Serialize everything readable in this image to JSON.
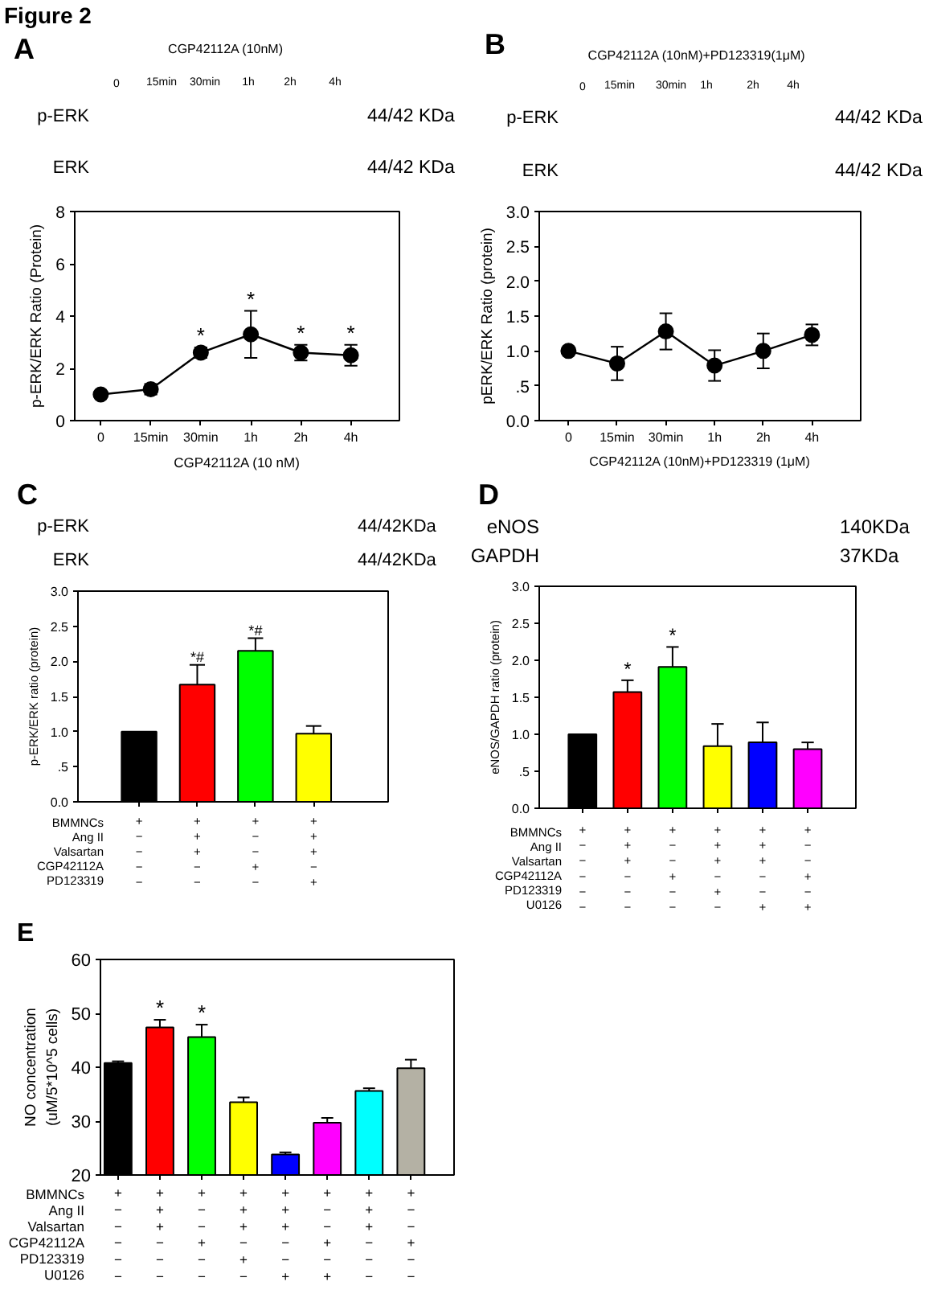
{
  "chart_data": [
    {
      "type": "line",
      "title": "A",
      "categories": [
        "0",
        "15min",
        "30min",
        "1h",
        "2h",
        "4h"
      ],
      "values": [
        1.0,
        1.2,
        2.6,
        3.3,
        2.6,
        2.5
      ],
      "errors": [
        null,
        0.2,
        0.2,
        0.9,
        0.3,
        0.4
      ],
      "color": "#000000",
      "marker": "circle",
      "xlabel": "CGP42112A (10 nM)",
      "ylabel": "p-ERK/ERK Ratio (Protein)",
      "ylim": [
        0,
        8
      ],
      "yticks": [
        0,
        2,
        4,
        6,
        8
      ],
      "annotations": [
        "Figure 2",
        "CGP42112A (10nM)",
        "0",
        "15min",
        "30min",
        "1h",
        "2h",
        "4h",
        "p-ERK",
        "44/42 KDa",
        "ERK",
        "44/42 KDa",
        {
          "text": "*",
          "x": "30min",
          "y": 2.8
        },
        {
          "text": "*",
          "x": "1h",
          "y": 4.2
        },
        {
          "text": "*",
          "x": "2h",
          "y": 2.9
        },
        {
          "text": "*",
          "x": "4h",
          "y": 2.9
        }
      ]
    },
    {
      "type": "line",
      "title": "B",
      "categories": [
        "0",
        "15min",
        "30min",
        "1h",
        "2h",
        "4h"
      ],
      "values": [
        1.0,
        0.82,
        1.28,
        0.79,
        1.0,
        1.23
      ],
      "errors": [
        null,
        0.24,
        0.26,
        0.22,
        0.25,
        0.15
      ],
      "color": "#000000",
      "marker": "circle",
      "xlabel": "CGP42112A (10nM)+PD123319 (1μM)",
      "ylabel": "pERK/ERK Ratio (protein)",
      "ylim": [
        0,
        3
      ],
      "yticks": [
        {
          "value": 0,
          "label": "0.0"
        },
        {
          "value": 0.5,
          "label": ".5"
        },
        {
          "value": 1,
          "label": "1.0"
        },
        {
          "value": 1.5,
          "label": "1.5"
        },
        {
          "value": 2,
          "label": "2.0"
        },
        {
          "value": 2.5,
          "label": "2.5"
        },
        {
          "value": 3,
          "label": "3.0"
        }
      ],
      "annotations": [
        "CGP42112A (10nM)+PD123319(1μM)",
        "0",
        "15min",
        "30min",
        "1h",
        "2h",
        "4h",
        "p-ERK",
        "44/42 KDa",
        "ERK",
        "44/42 KDa"
      ]
    },
    {
      "type": "bar",
      "title": "C",
      "categories": [
        "+\n−\n−\n−\n−",
        "+\n+\n+\n−\n−",
        "+\n−\n−\n+\n−",
        "+\n+\n+\n−\n+"
      ],
      "values": [
        1.0,
        1.67,
        2.15,
        0.97
      ],
      "errors": [
        null,
        0.28,
        0.18,
        0.11
      ],
      "colors": [
        "#000000",
        "#ff0000",
        "#00ff00",
        "#ffff00"
      ],
      "ylabel": "p-ERK/ERK ratio (protein)",
      "ylim": [
        0,
        3
      ],
      "yticks": [
        {
          "value": 0,
          "label": "0.0"
        },
        {
          "value": 0.5,
          "label": ".5"
        },
        {
          "value": 1,
          "label": "1.0"
        },
        {
          "value": 1.5,
          "label": "1.5"
        },
        {
          "value": 2,
          "label": "2.0"
        },
        {
          "value": 2.5,
          "label": "2.5"
        },
        {
          "value": 3,
          "label": "3.0"
        }
      ],
      "annotations": [
        "p-ERK",
        "44/42KDa",
        "ERK",
        "44/42KDa",
        "BMMNCs",
        "Ang II",
        "Valsartan",
        "CGP42112A",
        "PD123319",
        {
          "text": "*#",
          "x": "+\n+\n+\n−\n−",
          "y": 1.95
        },
        {
          "text": "*#",
          "x": "+\n−\n−\n+\n−",
          "y": 2.33
        }
      ]
    },
    {
      "type": "bar",
      "title": "D",
      "categories": [
        "+\n−\n−\n−\n−\n−",
        "+\n+\n+\n−\n−\n−",
        "+\n−\n−\n+\n−\n−",
        "+\n+\n+\n−\n+\n−",
        "+\n+\n+\n−\n−\n+",
        "+\n−\n−\n+\n−\n+"
      ],
      "values": [
        1.0,
        1.57,
        1.91,
        0.84,
        0.89,
        0.8
      ],
      "errors": [
        null,
        0.16,
        0.27,
        0.3,
        0.27,
        0.09
      ],
      "colors": [
        "#000000",
        "#ff0000",
        "#00ff00",
        "#ffff00",
        "#0000ff",
        "#ff00ff"
      ],
      "ylabel": "eNOS/GAPDH ratio (protein)",
      "ylim": [
        0,
        3
      ],
      "yticks": [
        {
          "value": 0,
          "label": "0.0"
        },
        {
          "value": 0.5,
          "label": ".5"
        },
        {
          "value": 1,
          "label": "1.0"
        },
        {
          "value": 1.5,
          "label": "1.5"
        },
        {
          "value": 2,
          "label": "2.0"
        },
        {
          "value": 2.5,
          "label": "2.5"
        },
        {
          "value": 3,
          "label": "3.0"
        }
      ],
      "annotations": [
        "eNOS",
        "140KDa",
        "GAPDH",
        "37KDa",
        "BMMNCs",
        "Ang II",
        "Valsartan",
        "CGP42112A",
        "PD123319",
        "U0126",
        {
          "text": "*",
          "x": "+\n+\n+\n−\n−\n−",
          "y": 1.73
        },
        {
          "text": "*",
          "x": "+\n−\n−\n+\n−\n−",
          "y": 2.18
        }
      ]
    },
    {
      "type": "bar",
      "title": "E",
      "categories": [
        "+\n−\n−\n−\n−\n−",
        "+\n+\n+\n−\n−\n−",
        "+\n−\n−\n+\n−\n−",
        "+\n+\n+\n−\n+\n−",
        "+\n+\n+\n−\n−\n+",
        "+\n−\n−\n+\n−\n+",
        "+\n+\n+\n−\n−\n−",
        "+\n−\n−\n+\n−\n−"
      ],
      "values": [
        40.8,
        47.4,
        45.6,
        33.5,
        23.8,
        29.7,
        35.6,
        39.8
      ],
      "errors": [
        0.3,
        1.4,
        2.3,
        0.9,
        0.4,
        0.9,
        0.5,
        1.6
      ],
      "colors": [
        "#000000",
        "#ff0000",
        "#00ff00",
        "#ffff00",
        "#0000ff",
        "#ff00ff",
        "#00ffff",
        "#b4b1a4"
      ],
      "ylabel": "NO concentration\n(uM/5*10^5 cells)",
      "ylim": [
        20,
        60
      ],
      "yticks": [
        20,
        30,
        40,
        50,
        60
      ],
      "annotations": [
        "BMMNCs",
        "Ang II",
        "Valsartan",
        "CGP42112A",
        "PD123319",
        "U0126",
        {
          "text": "*",
          "x": "+\n+\n+\n−\n−\n−",
          "y": 48.8
        },
        {
          "text": "*",
          "x": "+\n−\n−\n+\n−\n−",
          "y": 47.9
        }
      ]
    }
  ]
}
